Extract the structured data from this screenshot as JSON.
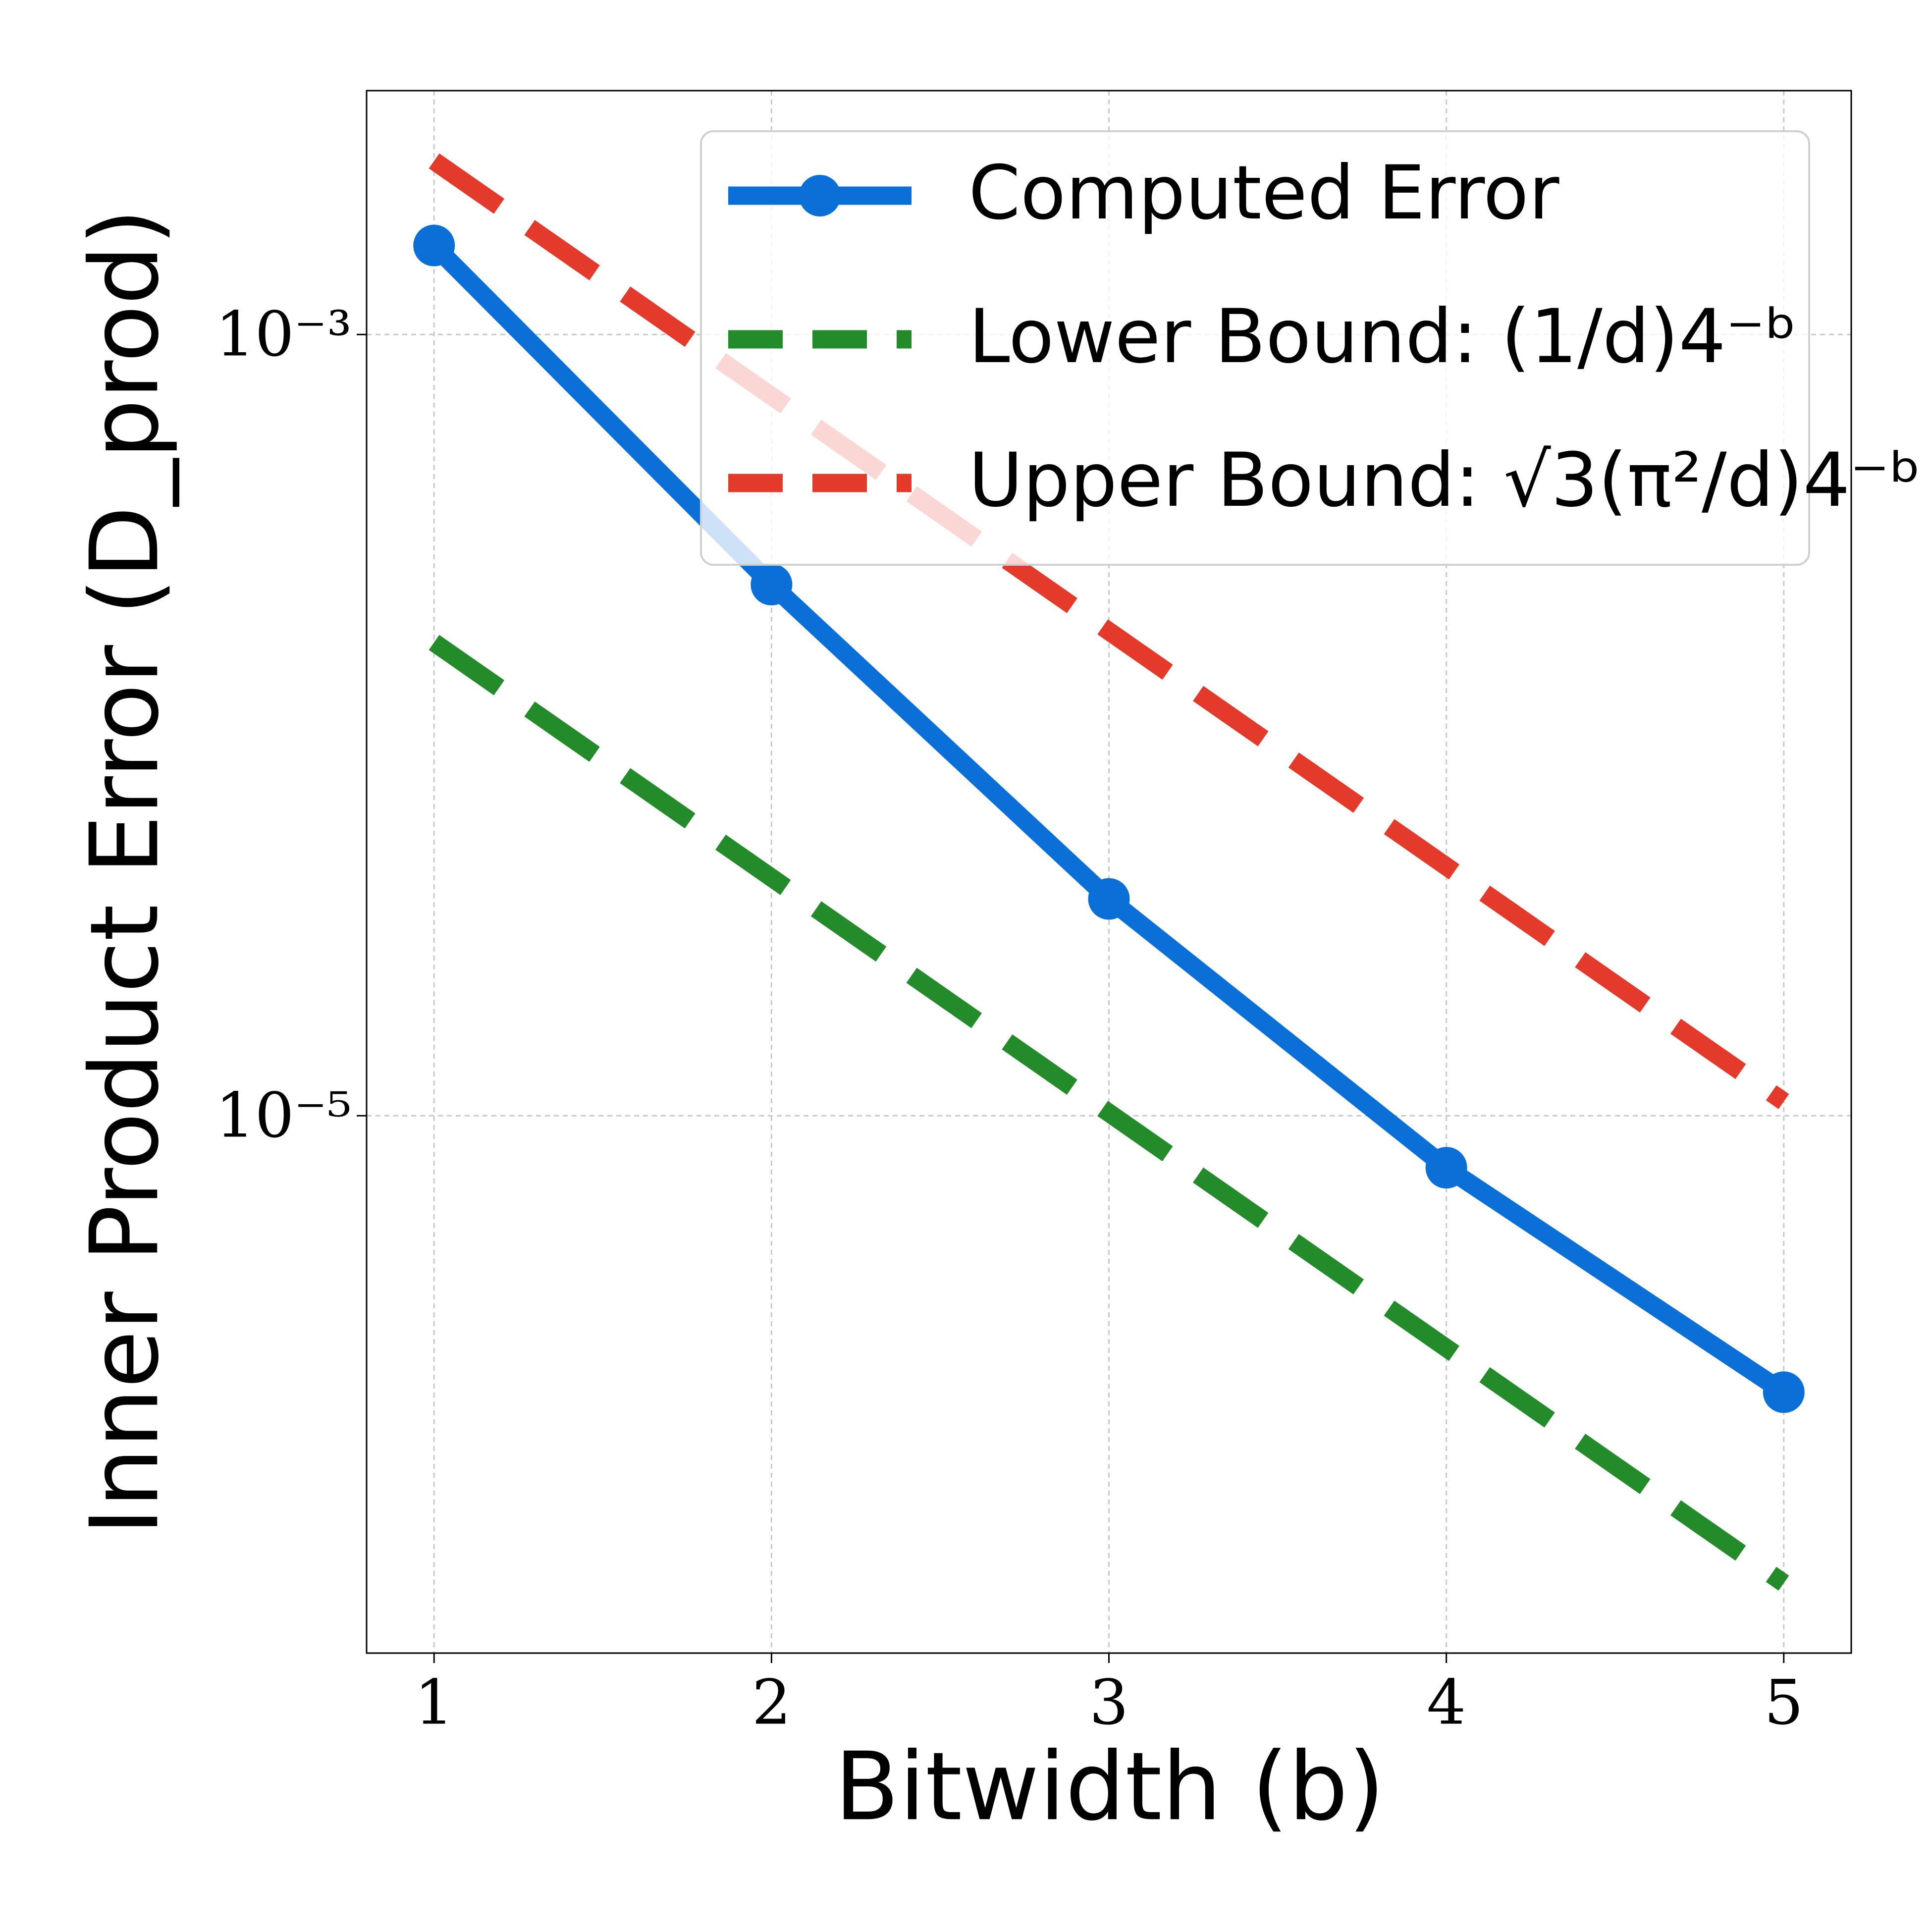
{
  "chart_data": {
    "type": "line",
    "x_label": "Bitwidth (b)",
    "y_label": "Inner Product Error (D_prod)",
    "x": [
      1,
      2,
      3,
      4,
      5
    ],
    "series": [
      {
        "name": "Computed Error",
        "color": "#0a6fd6",
        "style": "solid",
        "marker": true,
        "values": [
          0.00169,
          0.000229,
          3.59e-05,
          7.36e-06,
          1.96e-06
        ]
      },
      {
        "name": "Lower Bound: (1/d)4⁻ᵇ",
        "color": "#238b2a",
        "style": "dashed",
        "marker": false,
        "values": [
          0.0001628,
          4.069e-05,
          1.017e-05,
          2.543e-06,
          6.358e-07
        ]
      },
      {
        "name": "Upper Bound: √3(π²/d)4⁻ᵇ",
        "color": "#e33a2b",
        "style": "dashed",
        "marker": false,
        "values": [
          0.002782,
          0.0006955,
          0.0001739,
          4.347e-05,
          1.087e-05
        ]
      }
    ],
    "xlim": [
      0.8,
      5.2
    ],
    "ylim": [
      4.21e-07,
      0.00421
    ],
    "xticks": [
      1,
      2,
      3,
      4,
      5
    ],
    "yticks": [
      {
        "value": 0.001,
        "label": "10⁻³"
      },
      {
        "value": 1e-05,
        "label": "10⁻⁵"
      }
    ],
    "y_scale": "log",
    "grid": true,
    "legend": "upper right"
  }
}
